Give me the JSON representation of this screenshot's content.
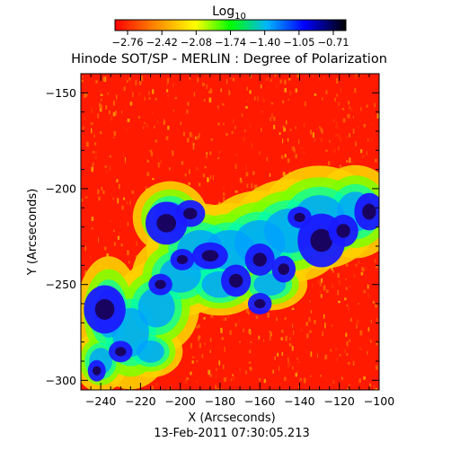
{
  "chart_data": {
    "type": "heatmap",
    "title": "Hinode SOT/SP - MERLIN : Degree of Polarization",
    "subtitle": "13-Feb-2011 07:30:05.213",
    "xlabel": "X (Arcseconds)",
    "ylabel": "Y (Arcseconds)",
    "xlim": [
      -250,
      -100
    ],
    "ylim": [
      -305,
      -140
    ],
    "x_ticks": [
      "-240",
      "-220",
      "-200",
      "-180",
      "-160",
      "-140",
      "-120",
      "-100"
    ],
    "x_tick_values": [
      -240,
      -220,
      -200,
      -180,
      -160,
      -140,
      -120,
      -100
    ],
    "y_ticks": [
      "-150",
      "-200",
      "-250",
      "-300"
    ],
    "y_tick_values": [
      -150,
      -200,
      -250,
      -300
    ],
    "colorbar": {
      "label_base": "Log",
      "label_sub": "10",
      "ticks": [
        "-2.76",
        "-2.42",
        "-2.08",
        "-1.74",
        "-1.40",
        "-1.05",
        "-0.71"
      ],
      "range": [
        -2.76,
        -0.71
      ],
      "colormap": [
        "#ff0000",
        "#ff8c00",
        "#ffff00",
        "#00ff00",
        "#00b4ff",
        "#0000ff",
        "#000000"
      ]
    },
    "grid": false
  },
  "colors": {
    "background": "#ffffff",
    "axis": "#000000"
  }
}
